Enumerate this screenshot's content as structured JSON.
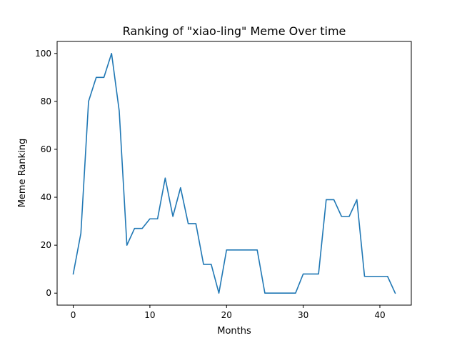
{
  "chart_data": {
    "type": "line",
    "title": "Ranking of \"xiao-ling\" Meme Over time",
    "xlabel": "Months",
    "ylabel": "Meme Ranking",
    "xlim": [
      -2.1,
      44.1
    ],
    "ylim": [
      -5,
      105
    ],
    "xticks": [
      0,
      10,
      20,
      30,
      40
    ],
    "yticks": [
      0,
      20,
      40,
      60,
      80,
      100
    ],
    "grid": false,
    "legend": "none",
    "line_color": "#1f77b4",
    "series": [
      {
        "x": [
          0,
          1,
          2,
          3,
          4,
          5,
          6,
          7,
          8,
          9,
          10,
          11,
          12,
          13,
          14,
          15,
          16,
          17,
          18,
          19,
          20,
          21,
          22,
          23,
          24,
          25,
          26,
          27,
          28,
          29,
          30,
          31,
          32,
          33,
          34,
          35,
          36,
          37,
          38,
          39,
          40,
          41,
          42
        ],
        "values": [
          8,
          25,
          80,
          90,
          90,
          100,
          76,
          20,
          27,
          27,
          31,
          31,
          48,
          32,
          44,
          29,
          29,
          12,
          12,
          0,
          18,
          18,
          18,
          18,
          18,
          0,
          0,
          0,
          0,
          0,
          8,
          8,
          8,
          39,
          39,
          32,
          32,
          39,
          7,
          7,
          7,
          7,
          0
        ]
      }
    ]
  }
}
